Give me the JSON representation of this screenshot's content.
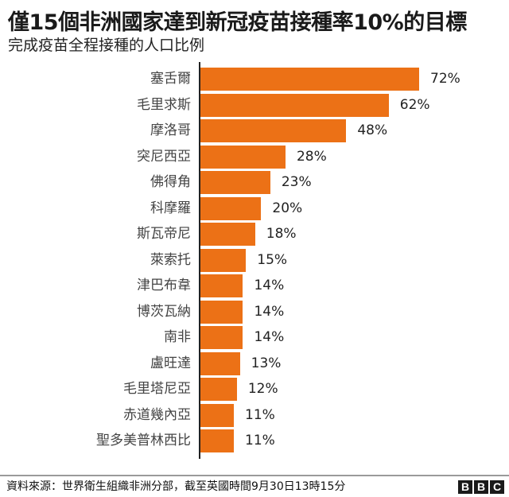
{
  "header": {
    "title": "僅15個非洲國家達到新冠疫苗接種率10%的目標",
    "subtitle": "完成疫苗全程接種的人口比例"
  },
  "footer": {
    "source": "資料來源：世界衛生組織非洲分部，截至英國時間9月30日13時15分",
    "logo_letters": [
      "B",
      "B",
      "C"
    ]
  },
  "colors": {
    "bar": "#ec7116",
    "axis": "#222222",
    "divider": "#9a9a9a"
  },
  "chart_data": {
    "type": "bar",
    "orientation": "horizontal",
    "title": "僅15個非洲國家達到新冠疫苗接種率10%的目標",
    "subtitle": "完成疫苗全程接種的人口比例",
    "xlabel": "",
    "ylabel": "",
    "unit": "%",
    "grid": false,
    "legend": null,
    "categories": [
      "塞舌爾",
      "毛里求斯",
      "摩洛哥",
      "突尼西亞",
      "佛得角",
      "科摩羅",
      "斯瓦帝尼",
      "萊索托",
      "津巴布韋",
      "博茨瓦納",
      "南非",
      "盧旺達",
      "毛里塔尼亞",
      "赤道幾內亞",
      "聖多美普林西比"
    ],
    "values": [
      72,
      62,
      48,
      28,
      23,
      20,
      18,
      15,
      14,
      14,
      14,
      13,
      12,
      11,
      11
    ],
    "value_labels": [
      "72%",
      "62%",
      "48%",
      "28%",
      "23%",
      "20%",
      "18%",
      "15%",
      "14%",
      "14%",
      "14%",
      "13%",
      "12%",
      "11%",
      "11%"
    ],
    "source": "資料來源：世界衛生組織非洲分部，截至英國時間9月30日13時15分"
  }
}
